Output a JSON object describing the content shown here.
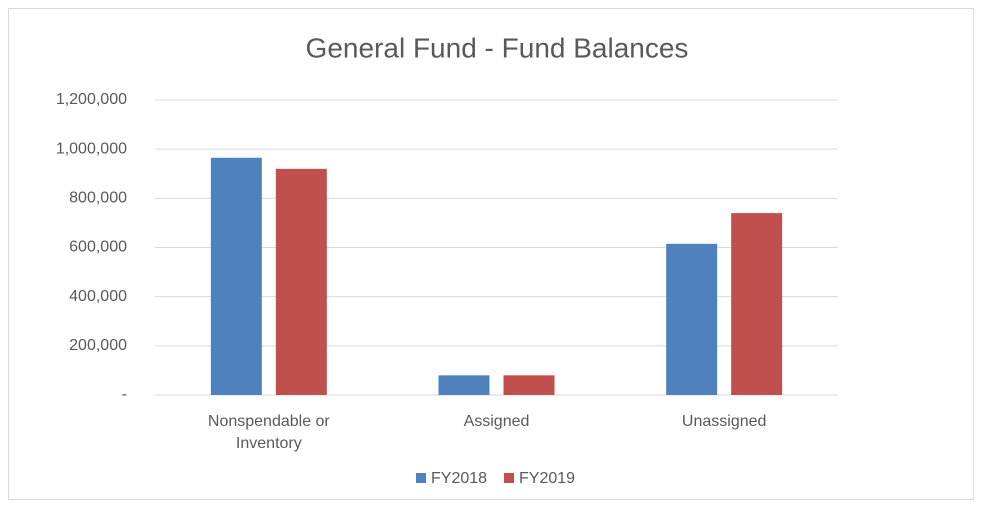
{
  "chart_data": {
    "type": "bar",
    "title": "General Fund - Fund Balances",
    "categories": [
      "Nonspendable or Inventory",
      "Assigned",
      "Unassigned"
    ],
    "series": [
      {
        "name": "FY2018",
        "color": "#4f81bd",
        "values": [
          965000,
          80000,
          615000
        ]
      },
      {
        "name": "FY2019",
        "color": "#c0504d",
        "values": [
          920000,
          80000,
          740000
        ]
      }
    ],
    "ylim": [
      0,
      1200000
    ],
    "yticks": [
      {
        "value": 0,
        "label": "-"
      },
      {
        "value": 200000,
        "label": "200,000"
      },
      {
        "value": 400000,
        "label": "400,000"
      },
      {
        "value": 600000,
        "label": "600,000"
      },
      {
        "value": 800000,
        "label": "800,000"
      },
      {
        "value": 1000000,
        "label": "1,000,000"
      },
      {
        "value": 1200000,
        "label": "1,200,000"
      }
    ],
    "grid": true,
    "legend": "bottom"
  }
}
